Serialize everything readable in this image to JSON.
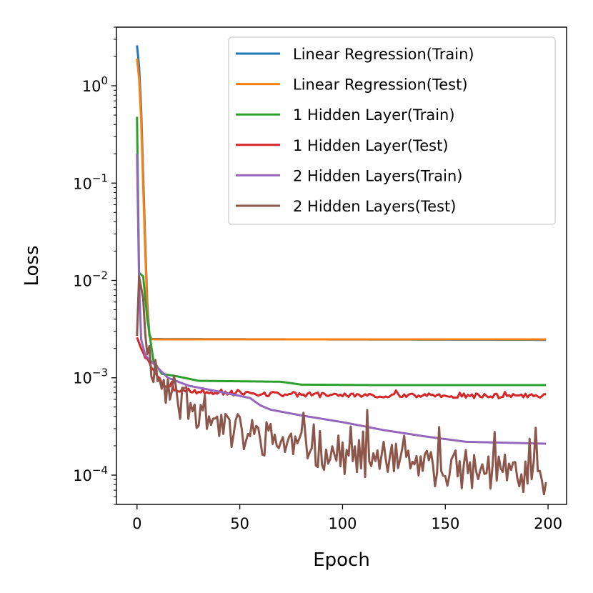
{
  "chart_data": {
    "type": "line",
    "title": "",
    "xlabel": "Epoch",
    "ylabel": "Loss",
    "xlim": [
      -10,
      209
    ],
    "ylim": [
      5e-05,
      4
    ],
    "yscale": "log",
    "grid": false,
    "legend_position": "top-right",
    "x_ticks": [
      0,
      50,
      100,
      150,
      200
    ],
    "x_tick_labels": [
      "0",
      "50",
      "100",
      "150",
      "200"
    ],
    "y_ticks": [
      {
        "value": 1,
        "base": "10",
        "exp": "0"
      },
      {
        "value": 0.1,
        "base": "10",
        "exp": "−1"
      },
      {
        "value": 0.01,
        "base": "10",
        "exp": "−2"
      },
      {
        "value": 0.001,
        "base": "10",
        "exp": "−3"
      },
      {
        "value": 0.0001,
        "base": "10",
        "exp": "−4"
      }
    ],
    "series": [
      {
        "name": "Linear Regression(Train)",
        "color": "#1f77b4",
        "style": "decay",
        "points": [
          [
            0,
            2.6
          ],
          [
            1,
            1.6
          ],
          [
            2,
            0.6
          ],
          [
            3,
            0.12
          ],
          [
            4,
            0.025
          ],
          [
            5,
            0.006
          ],
          [
            6,
            0.0028
          ],
          [
            7,
            0.0025
          ],
          [
            200,
            0.00245
          ]
        ]
      },
      {
        "name": "Linear Regression(Test)",
        "color": "#ff7f0e",
        "style": "decay",
        "points": [
          [
            0,
            1.9
          ],
          [
            1,
            1.2
          ],
          [
            2,
            0.45
          ],
          [
            3,
            0.09
          ],
          [
            4,
            0.02
          ],
          [
            5,
            0.005
          ],
          [
            6,
            0.0027
          ],
          [
            7,
            0.00248
          ],
          [
            200,
            0.00248
          ]
        ]
      },
      {
        "name": "1 Hidden Layer(Train)",
        "color": "#2ca02c",
        "style": "smooth",
        "points": [
          [
            0,
            0.48
          ],
          [
            1,
            0.012
          ],
          [
            3,
            0.011
          ],
          [
            5,
            0.004
          ],
          [
            8,
            0.0015
          ],
          [
            12,
            0.0011
          ],
          [
            20,
            0.00103
          ],
          [
            30,
            0.00093
          ],
          [
            50,
            0.00092
          ],
          [
            70,
            0.00091
          ],
          [
            75,
            0.00088
          ],
          [
            80,
            0.00085
          ],
          [
            120,
            0.00084
          ],
          [
            200,
            0.00084
          ]
        ]
      },
      {
        "name": "1 Hidden Layer(Test)",
        "color": "#d62728",
        "style": "noisy",
        "noise": 0.025,
        "seed": 3,
        "points": [
          [
            0,
            0.0026
          ],
          [
            2,
            0.002
          ],
          [
            5,
            0.0015
          ],
          [
            10,
            0.001
          ],
          [
            13,
            0.00085
          ],
          [
            20,
            0.00075
          ],
          [
            40,
            0.0007
          ],
          [
            60,
            0.00068
          ],
          [
            100,
            0.00066
          ],
          [
            200,
            0.00065
          ]
        ]
      },
      {
        "name": "2 Hidden Layers(Train)",
        "color": "#9467bd",
        "style": "smooth",
        "points": [
          [
            0,
            0.2
          ],
          [
            1,
            0.01
          ],
          [
            2,
            0.0025
          ],
          [
            4,
            0.0017
          ],
          [
            8,
            0.0014
          ],
          [
            15,
            0.001
          ],
          [
            25,
            0.00083
          ],
          [
            40,
            0.00072
          ],
          [
            55,
            0.00062
          ],
          [
            60,
            0.00052
          ],
          [
            65,
            0.00047
          ],
          [
            80,
            0.00041
          ],
          [
            100,
            0.00035
          ],
          [
            120,
            0.00029
          ],
          [
            140,
            0.00025
          ],
          [
            160,
            0.00022
          ],
          [
            200,
            0.00021
          ]
        ]
      },
      {
        "name": "2 Hidden Layers(Test)",
        "color": "#8c564b",
        "style": "noisy",
        "noise": 0.2,
        "seed": 11,
        "points": [
          [
            0,
            0.0027
          ],
          [
            1,
            0.011
          ],
          [
            2,
            0.0085
          ],
          [
            3,
            0.0065
          ],
          [
            5,
            0.002
          ],
          [
            8,
            0.0013
          ],
          [
            12,
            0.00085
          ],
          [
            20,
            0.0006
          ],
          [
            30,
            0.00045
          ],
          [
            50,
            0.00027
          ],
          [
            70,
            0.00022
          ],
          [
            100,
            0.00016
          ],
          [
            120,
            0.00014
          ],
          [
            140,
            0.00012
          ],
          [
            160,
            0.000115
          ],
          [
            180,
            0.000105
          ],
          [
            200,
            0.0001
          ]
        ]
      }
    ]
  }
}
